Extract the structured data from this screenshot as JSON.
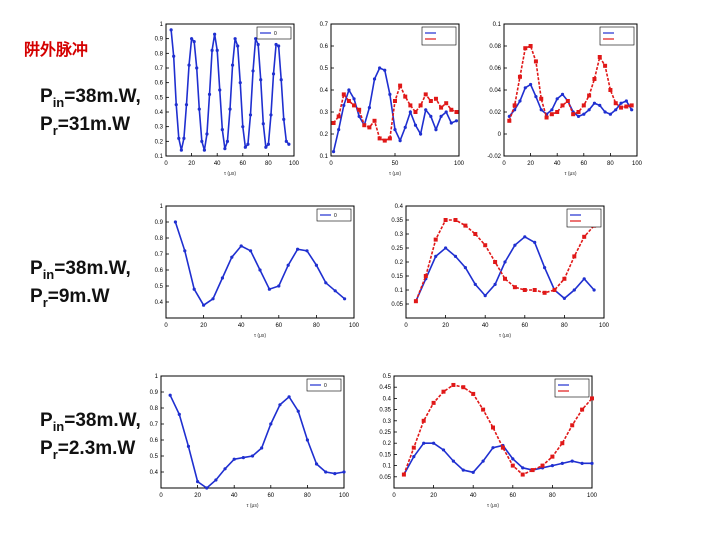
{
  "title": "阱外脉冲",
  "rows": [
    {
      "label": {
        "pin_prefix": "P",
        "pin_sub": "in",
        "pin_value": "=38m.W,",
        "pr_prefix": "P",
        "pr_sub": "r",
        "pr_value": "=31m.W"
      },
      "xlabel": "τ (μs)"
    },
    {
      "label": {
        "pin_prefix": "P",
        "pin_sub": "in",
        "pin_value": "=38m.W,",
        "pr_prefix": "P",
        "pr_sub": "r",
        "pr_value": "=9m.W"
      },
      "xlabel": "τ (μs)"
    },
    {
      "label": {
        "pin_prefix": "P",
        "pin_sub": "in",
        "pin_value": "=38m.W,",
        "pr_prefix": "P",
        "pr_sub": "r",
        "pr_value": "=2.3m.W"
      },
      "xlabel": "τ (μs)"
    }
  ],
  "colors": {
    "blue": "#1f2fd0",
    "red": "#e01818",
    "axis": "#000000"
  },
  "chart_data": [
    {
      "type": "line",
      "xlim": [
        0,
        100
      ],
      "ylim": [
        0.1,
        1.0
      ],
      "xticks": [
        0,
        20,
        40,
        60,
        80,
        100
      ],
      "yticks": [
        0.1,
        0.2,
        0.3,
        0.4,
        0.5,
        0.6,
        0.7,
        0.8,
        0.9,
        1
      ],
      "ylabel": "",
      "legend": {
        "entries": [
          "0"
        ],
        "placement": "top-right"
      },
      "series": [
        {
          "color": "blue",
          "marker": "dot",
          "x": [
            4,
            6,
            8,
            10,
            12,
            14,
            16,
            18,
            20,
            22,
            24,
            26,
            28,
            30,
            32,
            34,
            36,
            38,
            40,
            42,
            44,
            46,
            48,
            50,
            52,
            54,
            56,
            58,
            60,
            62,
            64,
            66,
            68,
            70,
            72,
            74,
            76,
            78,
            80,
            82,
            84,
            86,
            88,
            90,
            92,
            94,
            96
          ],
          "y": [
            0.96,
            0.78,
            0.45,
            0.22,
            0.14,
            0.22,
            0.45,
            0.72,
            0.9,
            0.88,
            0.7,
            0.42,
            0.2,
            0.14,
            0.25,
            0.52,
            0.82,
            0.93,
            0.82,
            0.55,
            0.28,
            0.15,
            0.2,
            0.42,
            0.72,
            0.9,
            0.85,
            0.6,
            0.3,
            0.16,
            0.18,
            0.38,
            0.68,
            0.9,
            0.86,
            0.62,
            0.32,
            0.16,
            0.18,
            0.38,
            0.66,
            0.86,
            0.85,
            0.62,
            0.35,
            0.2,
            0.18
          ]
        }
      ]
    },
    {
      "type": "line",
      "xlim": [
        0,
        100
      ],
      "ylim": [
        0.1,
        0.7
      ],
      "xticks": [
        0,
        50,
        100
      ],
      "yticks": [
        0.1,
        0.2,
        0.3,
        0.4,
        0.5,
        0.6,
        0.7
      ],
      "ylabel": "",
      "legend": {
        "entries": [
          "",
          ""
        ],
        "placement": "top-right"
      },
      "series": [
        {
          "color": "blue",
          "marker": "dot",
          "x": [
            2,
            6,
            10,
            14,
            18,
            22,
            26,
            30,
            34,
            38,
            42,
            46,
            50,
            54,
            58,
            62,
            66,
            70,
            74,
            78,
            82,
            86,
            90,
            94,
            98
          ],
          "y": [
            0.12,
            0.22,
            0.33,
            0.4,
            0.36,
            0.28,
            0.24,
            0.32,
            0.45,
            0.5,
            0.49,
            0.38,
            0.22,
            0.17,
            0.23,
            0.3,
            0.24,
            0.2,
            0.31,
            0.28,
            0.22,
            0.28,
            0.3,
            0.25,
            0.26
          ]
        },
        {
          "color": "red",
          "marker": "square",
          "x": [
            2,
            6,
            10,
            14,
            18,
            22,
            26,
            30,
            34,
            38,
            42,
            46,
            50,
            54,
            58,
            62,
            66,
            70,
            74,
            78,
            82,
            86,
            90,
            94,
            98
          ],
          "y": [
            0.25,
            0.28,
            0.38,
            0.35,
            0.33,
            0.31,
            0.24,
            0.23,
            0.26,
            0.18,
            0.17,
            0.18,
            0.35,
            0.42,
            0.37,
            0.33,
            0.3,
            0.33,
            0.38,
            0.35,
            0.36,
            0.32,
            0.34,
            0.31,
            0.3
          ]
        }
      ]
    },
    {
      "type": "line",
      "xlim": [
        0,
        100
      ],
      "ylim": [
        -0.02,
        0.1
      ],
      "xticks": [
        0,
        20,
        40,
        60,
        80,
        100
      ],
      "yticks": [
        -0.02,
        0,
        0.02,
        0.04,
        0.06,
        0.08,
        0.1
      ],
      "ylabel": "",
      "legend": {
        "entries": [
          "",
          ""
        ],
        "placement": "top-right"
      },
      "series": [
        {
          "color": "blue",
          "marker": "dot",
          "x": [
            4,
            8,
            12,
            16,
            20,
            24,
            28,
            32,
            36,
            40,
            44,
            48,
            52,
            56,
            60,
            64,
            68,
            72,
            76,
            80,
            84,
            88,
            92,
            96
          ],
          "y": [
            0.016,
            0.022,
            0.03,
            0.042,
            0.045,
            0.034,
            0.022,
            0.018,
            0.022,
            0.032,
            0.036,
            0.03,
            0.02,
            0.016,
            0.018,
            0.022,
            0.028,
            0.026,
            0.02,
            0.018,
            0.022,
            0.028,
            0.03,
            0.022
          ]
        },
        {
          "color": "red",
          "marker": "square",
          "x": [
            4,
            8,
            12,
            16,
            20,
            24,
            28,
            32,
            36,
            40,
            44,
            48,
            52,
            56,
            60,
            64,
            68,
            72,
            76,
            80,
            84,
            88,
            92,
            96
          ],
          "y": [
            0.012,
            0.026,
            0.052,
            0.078,
            0.08,
            0.066,
            0.032,
            0.015,
            0.018,
            0.02,
            0.026,
            0.03,
            0.018,
            0.02,
            0.026,
            0.035,
            0.05,
            0.07,
            0.062,
            0.04,
            0.028,
            0.024,
            0.025,
            0.026
          ]
        }
      ]
    },
    {
      "type": "line",
      "xlim": [
        0,
        100
      ],
      "ylim": [
        0.3,
        1.0
      ],
      "xticks": [
        0,
        20,
        40,
        60,
        80,
        100
      ],
      "yticks": [
        0.4,
        0.5,
        0.6,
        0.7,
        0.8,
        0.9,
        1
      ],
      "ylabel": "",
      "legend": {
        "entries": [
          "0"
        ],
        "placement": "top-right"
      },
      "series": [
        {
          "color": "blue",
          "marker": "dot",
          "x": [
            5,
            10,
            15,
            20,
            25,
            30,
            35,
            40,
            45,
            50,
            55,
            60,
            65,
            70,
            75,
            80,
            85,
            90,
            95
          ],
          "y": [
            0.9,
            0.72,
            0.48,
            0.38,
            0.42,
            0.55,
            0.68,
            0.75,
            0.72,
            0.6,
            0.48,
            0.5,
            0.63,
            0.73,
            0.72,
            0.63,
            0.52,
            0.47,
            0.42
          ]
        }
      ]
    },
    {
      "type": "line",
      "xlim": [
        0,
        100
      ],
      "ylim": [
        0.0,
        0.4
      ],
      "xticks": [
        0,
        20,
        40,
        60,
        80,
        100
      ],
      "yticks": [
        0.05,
        0.1,
        0.15,
        0.2,
        0.25,
        0.3,
        0.35,
        0.4
      ],
      "ylabel": "",
      "legend": {
        "entries": [
          "",
          ""
        ],
        "placement": "top-right"
      },
      "series": [
        {
          "color": "blue",
          "marker": "dot",
          "x": [
            5,
            10,
            15,
            20,
            25,
            30,
            35,
            40,
            45,
            50,
            55,
            60,
            65,
            70,
            75,
            80,
            85,
            90,
            95
          ],
          "y": [
            0.06,
            0.14,
            0.22,
            0.25,
            0.22,
            0.18,
            0.12,
            0.08,
            0.12,
            0.2,
            0.26,
            0.29,
            0.27,
            0.18,
            0.1,
            0.07,
            0.1,
            0.14,
            0.1
          ]
        },
        {
          "color": "red",
          "marker": "square",
          "x": [
            5,
            10,
            15,
            20,
            25,
            30,
            35,
            40,
            45,
            50,
            55,
            60,
            65,
            70,
            75,
            80,
            85,
            90,
            95
          ],
          "y": [
            0.06,
            0.15,
            0.28,
            0.35,
            0.35,
            0.33,
            0.3,
            0.26,
            0.2,
            0.14,
            0.11,
            0.1,
            0.1,
            0.09,
            0.1,
            0.14,
            0.22,
            0.29,
            0.33
          ]
        }
      ]
    },
    {
      "type": "line",
      "xlim": [
        0,
        100
      ],
      "ylim": [
        0.3,
        1.0
      ],
      "xticks": [
        0,
        20,
        40,
        60,
        80,
        100
      ],
      "yticks": [
        0.4,
        0.5,
        0.6,
        0.7,
        0.8,
        0.9,
        1
      ],
      "ylabel": "",
      "legend": {
        "entries": [
          "0"
        ],
        "placement": "top-right"
      },
      "series": [
        {
          "color": "blue",
          "marker": "dot",
          "x": [
            5,
            10,
            15,
            20,
            25,
            30,
            35,
            40,
            45,
            50,
            55,
            60,
            65,
            70,
            75,
            80,
            85,
            90,
            95,
            100
          ],
          "y": [
            0.88,
            0.76,
            0.56,
            0.34,
            0.3,
            0.35,
            0.42,
            0.48,
            0.49,
            0.5,
            0.55,
            0.7,
            0.82,
            0.87,
            0.78,
            0.6,
            0.45,
            0.4,
            0.39,
            0.4
          ]
        }
      ]
    },
    {
      "type": "line",
      "xlim": [
        0,
        100
      ],
      "ylim": [
        0.0,
        0.5
      ],
      "xticks": [
        0,
        20,
        40,
        60,
        80,
        100
      ],
      "yticks": [
        0.05,
        0.1,
        0.15,
        0.2,
        0.25,
        0.3,
        0.35,
        0.4,
        0.45,
        0.5
      ],
      "ylabel": "",
      "legend": {
        "entries": [
          "",
          ""
        ],
        "placement": "top-right"
      },
      "series": [
        {
          "color": "blue",
          "marker": "dot",
          "x": [
            5,
            10,
            15,
            20,
            25,
            30,
            35,
            40,
            45,
            50,
            55,
            60,
            65,
            70,
            75,
            80,
            85,
            90,
            95,
            100
          ],
          "y": [
            0.06,
            0.14,
            0.2,
            0.2,
            0.17,
            0.12,
            0.08,
            0.07,
            0.12,
            0.18,
            0.19,
            0.13,
            0.09,
            0.08,
            0.09,
            0.1,
            0.11,
            0.12,
            0.11,
            0.11
          ]
        },
        {
          "color": "red",
          "marker": "square",
          "x": [
            5,
            10,
            15,
            20,
            25,
            30,
            35,
            40,
            45,
            50,
            55,
            60,
            65,
            70,
            75,
            80,
            85,
            90,
            95,
            100
          ],
          "y": [
            0.06,
            0.18,
            0.3,
            0.38,
            0.43,
            0.46,
            0.45,
            0.42,
            0.35,
            0.27,
            0.18,
            0.1,
            0.06,
            0.08,
            0.1,
            0.14,
            0.2,
            0.28,
            0.35,
            0.4
          ]
        }
      ]
    }
  ]
}
